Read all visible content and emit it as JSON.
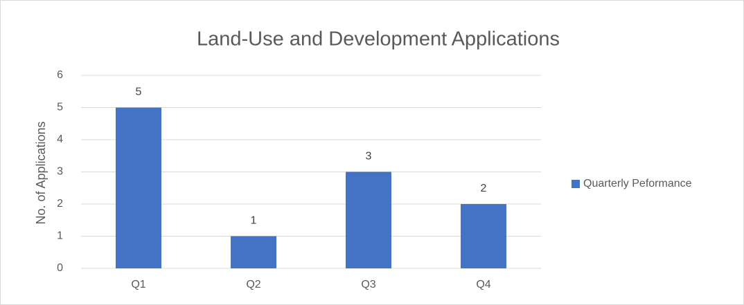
{
  "chart_data": {
    "type": "bar",
    "title": "Land-Use and Development Applications",
    "y_label": "No. of Applications",
    "categories": [
      "Q1",
      "Q2",
      "Q3",
      "Q4"
    ],
    "series": [
      {
        "name": "Quarterly Peformance",
        "color": "#4472c4",
        "values": [
          5,
          1,
          3,
          2
        ]
      }
    ],
    "ylim": [
      0,
      6
    ],
    "yticks": [
      0,
      1,
      2,
      3,
      4,
      5,
      6
    ],
    "grid": true,
    "legend": "right"
  }
}
